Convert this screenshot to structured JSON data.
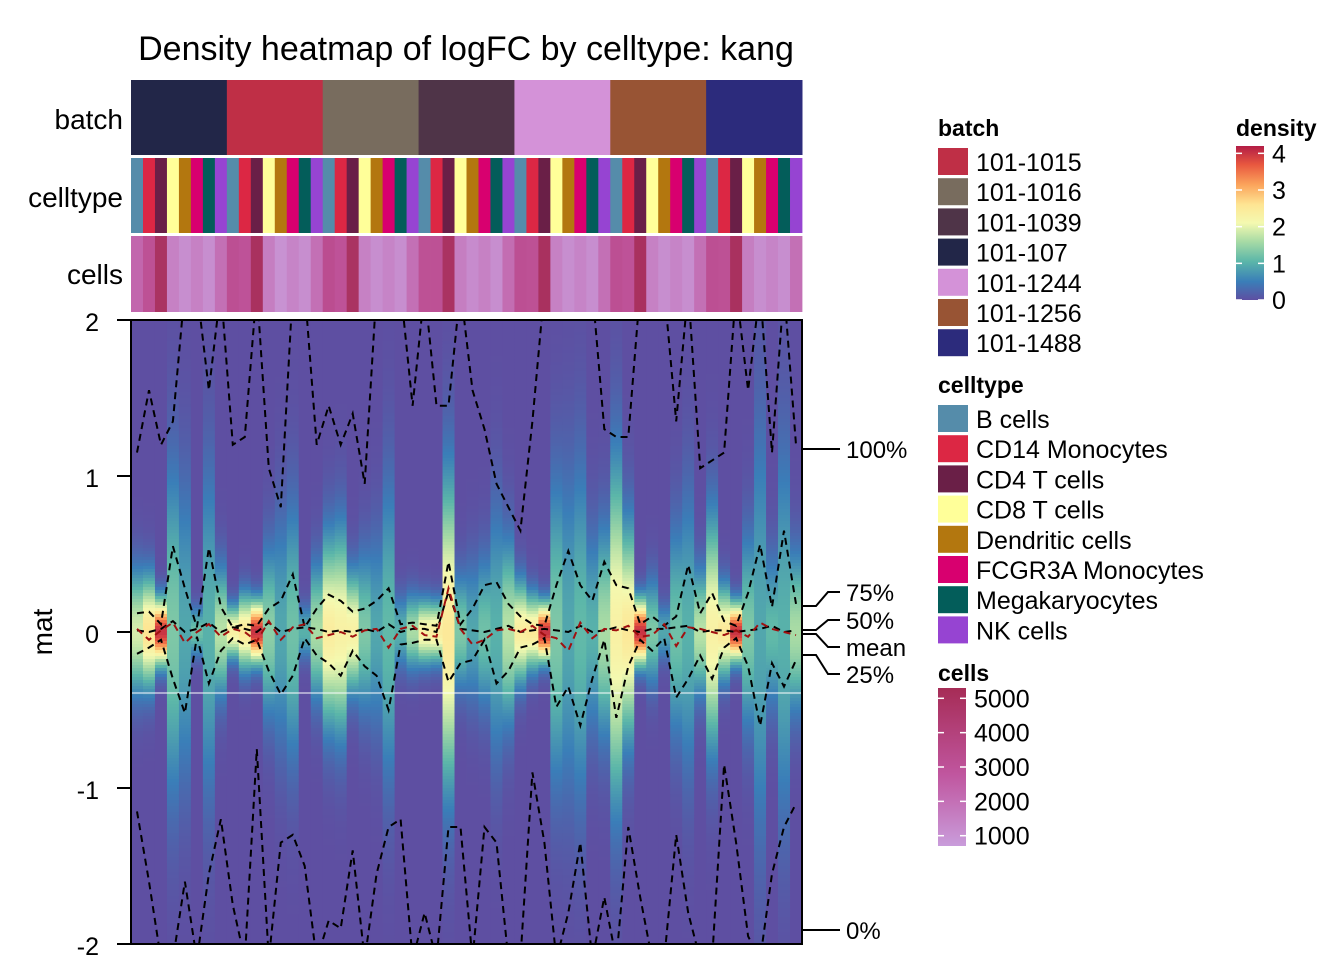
{
  "chart_data": {
    "type": "heatmap",
    "title": "Density heatmap of logFC by celltype: kang",
    "ylabel": "mat",
    "ylim": [
      -2,
      2
    ],
    "yticks": [
      "-2",
      "-1",
      "0",
      "1",
      "2"
    ],
    "annotation_rows": [
      "batch",
      "celltype",
      "cells"
    ],
    "quantile_labels": [
      "100%",
      "75%",
      "50%",
      "mean",
      "25%",
      "0%"
    ],
    "batch_column_order": [
      "101-107",
      "101-1015",
      "101-1016",
      "101-1039",
      "101-1244",
      "101-1256",
      "101-1488"
    ],
    "celltype_cycle": [
      "B cells",
      "CD14 Monocytes",
      "CD4 T cells",
      "CD8 T cells",
      "Dendritic cells",
      "FCGR3A Monocytes",
      "Megakaryocytes",
      "NK cells"
    ],
    "cells_per_column": [
      2300,
      3100,
      4900,
      1500,
      1100,
      1500,
      1100,
      2000,
      3200,
      3000,
      5000,
      1600,
      1000,
      1400,
      1100,
      2000,
      3300,
      3000,
      4900,
      1500,
      1100,
      1400,
      1100,
      2000,
      3100,
      3100,
      4900,
      1600,
      1200,
      1500,
      1100,
      2100,
      3200,
      3100,
      5000,
      1500,
      1100,
      1400,
      1100,
      2000,
      3200,
      3000,
      5000,
      1500,
      1100,
      1400,
      1100,
      2000,
      3200,
      3100,
      5000,
      1600,
      1100,
      1400,
      1100,
      2000
    ],
    "density_peak_per_column": [
      1.9,
      2.6,
      4.0,
      1.3,
      0.9,
      1.2,
      1.0,
      1.7,
      2.3,
      2.5,
      4.0,
      1.4,
      0.9,
      1.2,
      1.0,
      1.6,
      2.4,
      2.3,
      2.3,
      1.3,
      0.9,
      1.1,
      1.0,
      1.6,
      2.3,
      2.4,
      2.5,
      1.3,
      0.9,
      1.2,
      1.0,
      1.7,
      2.4,
      2.5,
      4.0,
      1.3,
      0.9,
      1.1,
      1.0,
      1.6,
      2.3,
      2.5,
      4.0,
      1.3,
      0.9,
      1.2,
      1.0,
      1.7,
      2.3,
      2.5,
      4.0,
      1.3,
      0.9,
      1.1,
      1.0,
      1.6
    ],
    "q75": [
      0.12,
      0.13,
      0.05,
      0.55,
      0.28,
      0.03,
      0.54,
      0.16,
      0.03,
      0.05,
      0.04,
      0.15,
      0.2,
      0.37,
      0.03,
      0.15,
      0.24,
      0.2,
      0.13,
      0.15,
      0.2,
      0.28,
      0.05,
      0.06,
      0.05,
      0.04,
      0.45,
      0.05,
      0.15,
      0.3,
      0.32,
      0.18,
      0.1,
      0.05,
      0.04,
      0.3,
      0.52,
      0.3,
      0.2,
      0.45,
      0.3,
      0.28,
      0.05,
      0.1,
      0.04,
      0.1,
      0.43,
      0.12,
      0.25,
      0.07,
      0.04,
      0.25,
      0.56,
      0.16,
      0.65,
      0.18
    ],
    "q50": [
      0.01,
      0.0,
      0.02,
      0.07,
      0.0,
      0.02,
      0.06,
      0.0,
      0.03,
      0.02,
      0.0,
      0.06,
      0.0,
      0.02,
      0.03,
      0.02,
      0.0,
      0.01,
      0.0,
      0.02,
      0.0,
      0.05,
      0.0,
      0.02,
      0.02,
      0.0,
      0.26,
      0.02,
      0.01,
      0.0,
      0.02,
      0.04,
      0.0,
      0.01,
      0.02,
      0.01,
      0.0,
      0.04,
      0.0,
      0.01,
      0.03,
      0.01,
      0.0,
      0.02,
      0.02,
      0.03,
      0.04,
      0.0,
      0.01,
      0.01,
      0.0,
      0.01,
      0.02,
      0.04,
      0.0,
      0.01
    ],
    "mean": [
      0.02,
      -0.05,
      0.01,
      0.06,
      -0.07,
      0.0,
      0.05,
      -0.03,
      0.02,
      0.0,
      -0.06,
      0.07,
      -0.05,
      0.03,
      0.05,
      -0.04,
      -0.02,
      0.0,
      -0.03,
      0.01,
      0.02,
      -0.1,
      0.02,
      0.04,
      -0.02,
      -0.03,
      0.28,
      0.02,
      -0.08,
      -0.05,
      0.01,
      0.02,
      0.0,
      0.04,
      -0.02,
      -0.04,
      -0.12,
      0.06,
      -0.04,
      0.02,
      0.01,
      0.04,
      -0.03,
      -0.02,
      0.05,
      -0.09,
      0.03,
      0.02,
      0.0,
      -0.02,
      0.01,
      -0.03,
      0.06,
      0.02,
      0.0,
      -0.02
    ],
    "q25": [
      -0.14,
      -0.1,
      -0.05,
      -0.3,
      -0.52,
      -0.03,
      -0.33,
      -0.12,
      -0.04,
      -0.08,
      -0.05,
      -0.25,
      -0.4,
      -0.28,
      -0.04,
      -0.15,
      -0.2,
      -0.28,
      -0.12,
      -0.22,
      -0.28,
      -0.5,
      -0.08,
      -0.07,
      -0.05,
      -0.05,
      -0.32,
      -0.2,
      -0.18,
      -0.05,
      -0.33,
      -0.25,
      -0.1,
      -0.08,
      -0.04,
      -0.48,
      -0.35,
      -0.6,
      -0.3,
      -0.05,
      -0.55,
      -0.22,
      -0.05,
      -0.12,
      -0.04,
      -0.42,
      -0.3,
      -0.15,
      -0.3,
      -0.1,
      -0.04,
      -0.22,
      -0.6,
      -0.2,
      -0.35,
      -0.18
    ],
    "q100": [
      1.15,
      1.55,
      1.2,
      1.35,
      2.2,
      2.2,
      1.55,
      2.2,
      1.2,
      1.25,
      2.2,
      1.05,
      0.8,
      2.2,
      2.2,
      1.2,
      1.45,
      1.2,
      1.4,
      0.95,
      2.2,
      2.2,
      2.2,
      1.45,
      2.2,
      1.45,
      1.45,
      2.2,
      1.55,
      1.3,
      0.95,
      0.8,
      0.65,
      1.35,
      2.2,
      2.2,
      2.2,
      2.2,
      2.2,
      1.3,
      1.25,
      1.25,
      2.2,
      2.2,
      2.2,
      1.35,
      2.2,
      1.05,
      1.1,
      1.15,
      2.2,
      1.55,
      2.2,
      1.15,
      2.2,
      1.2
    ],
    "q0": [
      -1.15,
      -1.6,
      -2.1,
      -2.1,
      -1.6,
      -2.1,
      -1.55,
      -1.2,
      -1.75,
      -2.1,
      -0.75,
      -2.1,
      -1.35,
      -1.3,
      -1.5,
      -2.1,
      -1.85,
      -1.9,
      -1.4,
      -2.1,
      -1.55,
      -1.25,
      -1.2,
      -2.1,
      -1.8,
      -2.1,
      -1.25,
      -1.25,
      -2.1,
      -1.25,
      -1.35,
      -2.1,
      -2.1,
      -0.9,
      -1.35,
      -2.1,
      -1.8,
      -1.35,
      -2.1,
      -1.7,
      -2.1,
      -1.25,
      -1.7,
      -2.1,
      -2.1,
      -1.3,
      -1.8,
      -2.1,
      -2.1,
      -0.85,
      -1.35,
      -1.95,
      -2.1,
      -1.55,
      -1.25,
      -1.1
    ],
    "legends": {
      "batch": {
        "title": "batch",
        "items": [
          {
            "label": "101-1015",
            "color": "#BF2F46"
          },
          {
            "label": "101-1016",
            "color": "#786C5E"
          },
          {
            "label": "101-1039",
            "color": "#4F3448"
          },
          {
            "label": "101-107",
            "color": "#222648"
          },
          {
            "label": "101-1244",
            "color": "#D492D8"
          },
          {
            "label": "101-1256",
            "color": "#985434"
          },
          {
            "label": "101-1488",
            "color": "#2C2B7C"
          }
        ]
      },
      "celltype": {
        "title": "celltype",
        "items": [
          {
            "label": "B cells",
            "color": "#558CAA"
          },
          {
            "label": "CD14 Monocytes",
            "color": "#DC2744"
          },
          {
            "label": "CD4 T cells",
            "color": "#6A1F47"
          },
          {
            "label": "CD8 T cells",
            "color": "#FFFF99"
          },
          {
            "label": "Dendritic cells",
            "color": "#B3770F"
          },
          {
            "label": "FCGR3A Monocytes",
            "color": "#D8006F"
          },
          {
            "label": "Megakaryocytes",
            "color": "#035D5A"
          },
          {
            "label": "NK cells",
            "color": "#9644D2"
          }
        ]
      },
      "density": {
        "title": "density",
        "ticks": [
          "4",
          "3",
          "2",
          "1",
          "0"
        ],
        "range": [
          0,
          4.2
        ]
      },
      "cells": {
        "title": "cells",
        "ticks": [
          "5000",
          "4000",
          "3000",
          "2000",
          "1000"
        ],
        "range": [
          700,
          5300
        ]
      }
    }
  }
}
